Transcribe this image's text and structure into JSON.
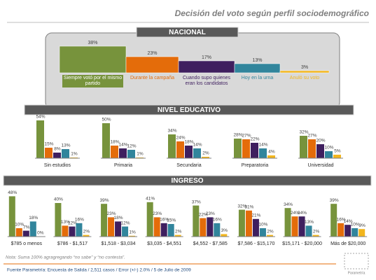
{
  "header": {
    "title": "Decisión del voto  según perfil sociodemográfico"
  },
  "chart_data": [
    {
      "type": "bar",
      "title": "NACIONAL",
      "categories": [
        "Siempre votó por el mismo partido",
        "Durante la campaña",
        "Cuando supo quienes eran los candidatos",
        "Hoy en la urna",
        "Anuló su voto"
      ],
      "values": [
        38,
        23,
        17,
        13,
        3
      ],
      "value_labels": [
        "38%",
        "23%",
        "17%",
        "13%",
        "3%"
      ],
      "colors": [
        "#77933c",
        "#e46c0a",
        "#3f1f5f",
        "#31859c",
        "#f2b61e"
      ]
    },
    {
      "type": "grouped_bar",
      "title": "NIVEL EDUCATIVO",
      "categories": [
        "Sin estudios",
        "Primaria",
        "Secundaria",
        "Preparatoria",
        "Universidad"
      ],
      "series": [
        {
          "color": "#77933c",
          "values": [
            54,
            50,
            34,
            28,
            32
          ],
          "value_labels": [
            "54%",
            "50%",
            "34%",
            "28%",
            "32%"
          ]
        },
        {
          "color": "#e46c0a",
          "values": [
            15,
            18,
            24,
            27,
            27
          ],
          "value_labels": [
            "15%",
            "18%",
            "24%",
            "27%",
            "27%"
          ]
        },
        {
          "color": "#3f1f5f",
          "values": [
            8,
            14,
            18,
            22,
            20
          ],
          "value_labels": [
            "8%",
            "14%",
            "18%",
            "22%",
            "20%"
          ]
        },
        {
          "color": "#31859c",
          "values": [
            13,
            12,
            14,
            14,
            10
          ],
          "value_labels": [
            "13%",
            "12%",
            "14%",
            "14%",
            "10%"
          ]
        },
        {
          "color": "#f2b61e",
          "values": [
            1,
            1,
            2,
            4,
            5
          ],
          "value_labels": [
            "1%",
            "1%",
            "2%",
            "4%",
            "5%"
          ]
        }
      ]
    },
    {
      "type": "grouped_bar",
      "title": "INGRESO",
      "categories": [
        "$785 o menos",
        "$786 - $1,517",
        "$1,518 - $3,034",
        "$3,035 - $4,551",
        "$4,552 - $7,585",
        "$7,586 - $15,170",
        "$15,171 - $20,000",
        "Más de $20,000"
      ],
      "series": [
        {
          "color": "#77933c",
          "values": [
            48,
            40,
            39,
            41,
            37,
            32,
            34,
            39
          ],
          "value_labels": [
            "48%",
            "40%",
            "39%",
            "41%",
            "37%",
            "32%",
            "34%",
            "39%"
          ]
        },
        {
          "color": "#e46c0a",
          "values": [
            10,
            13,
            23,
            23,
            22,
            31,
            24,
            16
          ],
          "value_labels": [
            "10%",
            "13%",
            "23%",
            "23%",
            "22%",
            "31%",
            "24%",
            "16%"
          ]
        },
        {
          "color": "#3f1f5f",
          "values": [
            7,
            12,
            18,
            16,
            23,
            21,
            24,
            14
          ],
          "value_labels": [
            "7%",
            "12%",
            "18%",
            "16%",
            "23%",
            "21%",
            "24%",
            "14%"
          ]
        },
        {
          "color": "#31859c",
          "values": [
            18,
            16,
            12,
            15,
            16,
            10,
            13,
            10
          ],
          "value_labels": [
            "18%",
            "16%",
            "12%",
            "15%",
            "16%",
            "10%",
            "13%",
            "10%"
          ]
        },
        {
          "color": "#f2b61e",
          "values": [
            0,
            2,
            1,
            2,
            3,
            2,
            2,
            9
          ],
          "value_labels": [
            "0%",
            "2%",
            "1%",
            "2%",
            "3%",
            "2%",
            "2%",
            "9%"
          ]
        }
      ]
    }
  ],
  "note": "Nota: Suma 100% agragregando “no sabe” y “no contesta”.",
  "source": "Fuente Parametría: Encuesta de Salida / 2,511 casos / Error (+/-) 2.0% / 5 de Julio de 2009",
  "logo": "Parametría"
}
